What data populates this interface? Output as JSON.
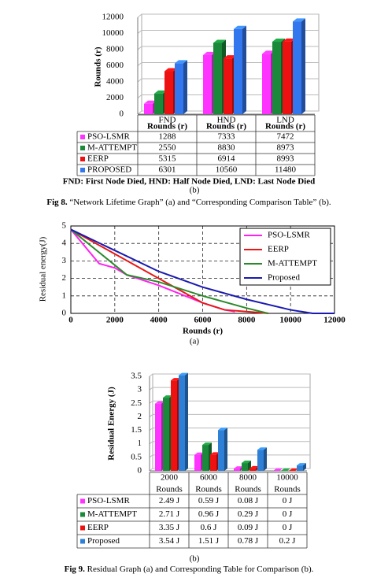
{
  "chart_data": [
    {
      "type": "bar",
      "bar_style": "3d",
      "data_table": true,
      "grid": true,
      "y_label": "Rounds (r)",
      "categories": [
        "FND",
        "HND",
        "LND"
      ],
      "category_sublabel": "Rounds (r)",
      "series": [
        {
          "name": "PSO-LSMR",
          "color": "#ff33ff",
          "values": [
            1288,
            7333,
            7472
          ]
        },
        {
          "name": "M-ATTEMPT",
          "color": "#1a8a3a",
          "values": [
            2550,
            8830,
            8973
          ]
        },
        {
          "name": "EERP",
          "color": "#ee1111",
          "values": [
            5315,
            6914,
            8993
          ]
        },
        {
          "name": "PROPOSED",
          "color": "#3377ee",
          "values": [
            6301,
            10560,
            11480
          ]
        }
      ],
      "ylim": [
        0,
        12000
      ],
      "yticks": [
        0,
        2000,
        4000,
        6000,
        8000,
        10000,
        12000
      ],
      "note": "FND: First Node Died, HND: Half Node Died, LND: Last Node Died",
      "panel_label": "(b)",
      "caption_label": "Fig 8.",
      "caption": "“Network Lifetime Graph” (a) and “Corresponding Comparison Table” (b)."
    },
    {
      "type": "line",
      "grid": true,
      "legend": "top-right",
      "x_label": "Rounds (r)",
      "y_label": "Residual energy(J)",
      "series": [
        {
          "name": "PSO-LSMR",
          "color": "#ff22ee",
          "x": [
            0,
            1288,
            2000,
            2550,
            4000,
            6000,
            7000,
            7472
          ],
          "values": [
            4.8,
            2.85,
            2.6,
            2.2,
            1.6,
            0.6,
            0.2,
            0.1
          ]
        },
        {
          "name": "EERP",
          "color": "#e81818",
          "x": [
            0,
            2000,
            4000,
            6000,
            7000,
            8000,
            8993
          ],
          "values": [
            4.8,
            3.4,
            2.0,
            0.6,
            0.2,
            0.1,
            0
          ]
        },
        {
          "name": "M-ATTEMPT",
          "color": "#2a8a2a",
          "x": [
            0,
            2550,
            4000,
            6000,
            8000,
            8973
          ],
          "values": [
            4.8,
            2.2,
            1.8,
            1.0,
            0.3,
            0
          ]
        },
        {
          "name": "Proposed",
          "color": "#1a1ab0",
          "x": [
            0,
            2000,
            4000,
            6000,
            8000,
            10000,
            11000,
            12000
          ],
          "values": [
            4.8,
            3.6,
            2.4,
            1.5,
            0.8,
            0.2,
            0,
            0
          ]
        }
      ],
      "xlim": [
        0,
        12000
      ],
      "xticks": [
        0,
        2000,
        4000,
        6000,
        8000,
        10000,
        12000
      ],
      "ylim": [
        0,
        5
      ],
      "yticks": [
        0,
        1,
        2,
        3,
        4,
        5
      ],
      "panel_label": "(a)"
    },
    {
      "type": "bar",
      "bar_style": "3d",
      "data_table": true,
      "grid": true,
      "y_label": "Residual Energy (J)",
      "categories": [
        "2000",
        "6000",
        "8000",
        "10000"
      ],
      "category_sublabel": "Rounds",
      "series": [
        {
          "name": "PSO-LSMR",
          "color": "#ff33ff",
          "values": [
            2.49,
            0.59,
            0.08,
            0
          ],
          "value_labels": [
            "2.49 J",
            "0.59 J",
            "0.08 J",
            "0 J"
          ]
        },
        {
          "name": "M-ATTEMPT",
          "color": "#1a8a3a",
          "values": [
            2.71,
            0.96,
            0.29,
            0
          ],
          "value_labels": [
            "2.71 J",
            "0.96 J",
            "0.29 J",
            "0 J"
          ]
        },
        {
          "name": "EERP",
          "color": "#ee1111",
          "values": [
            3.35,
            0.6,
            0.09,
            0
          ],
          "value_labels": [
            "3.35 J",
            "0.6 J",
            "0.09 J",
            "0 J"
          ]
        },
        {
          "name": "Proposed",
          "color": "#2e7fd6",
          "values": [
            3.54,
            1.51,
            0.78,
            0.2
          ],
          "value_labels": [
            "3.54 J",
            "1.51 J",
            "0.78 J",
            "0.2 J"
          ]
        }
      ],
      "ylim": [
        0,
        3.5
      ],
      "yticks": [
        0,
        0.5,
        1,
        1.5,
        2,
        2.5,
        3,
        3.5
      ],
      "panel_label": "(b)",
      "caption_label": "Fig 9.",
      "caption": "Residual Graph (a) and Corresponding Table for Comparison (b)."
    }
  ]
}
